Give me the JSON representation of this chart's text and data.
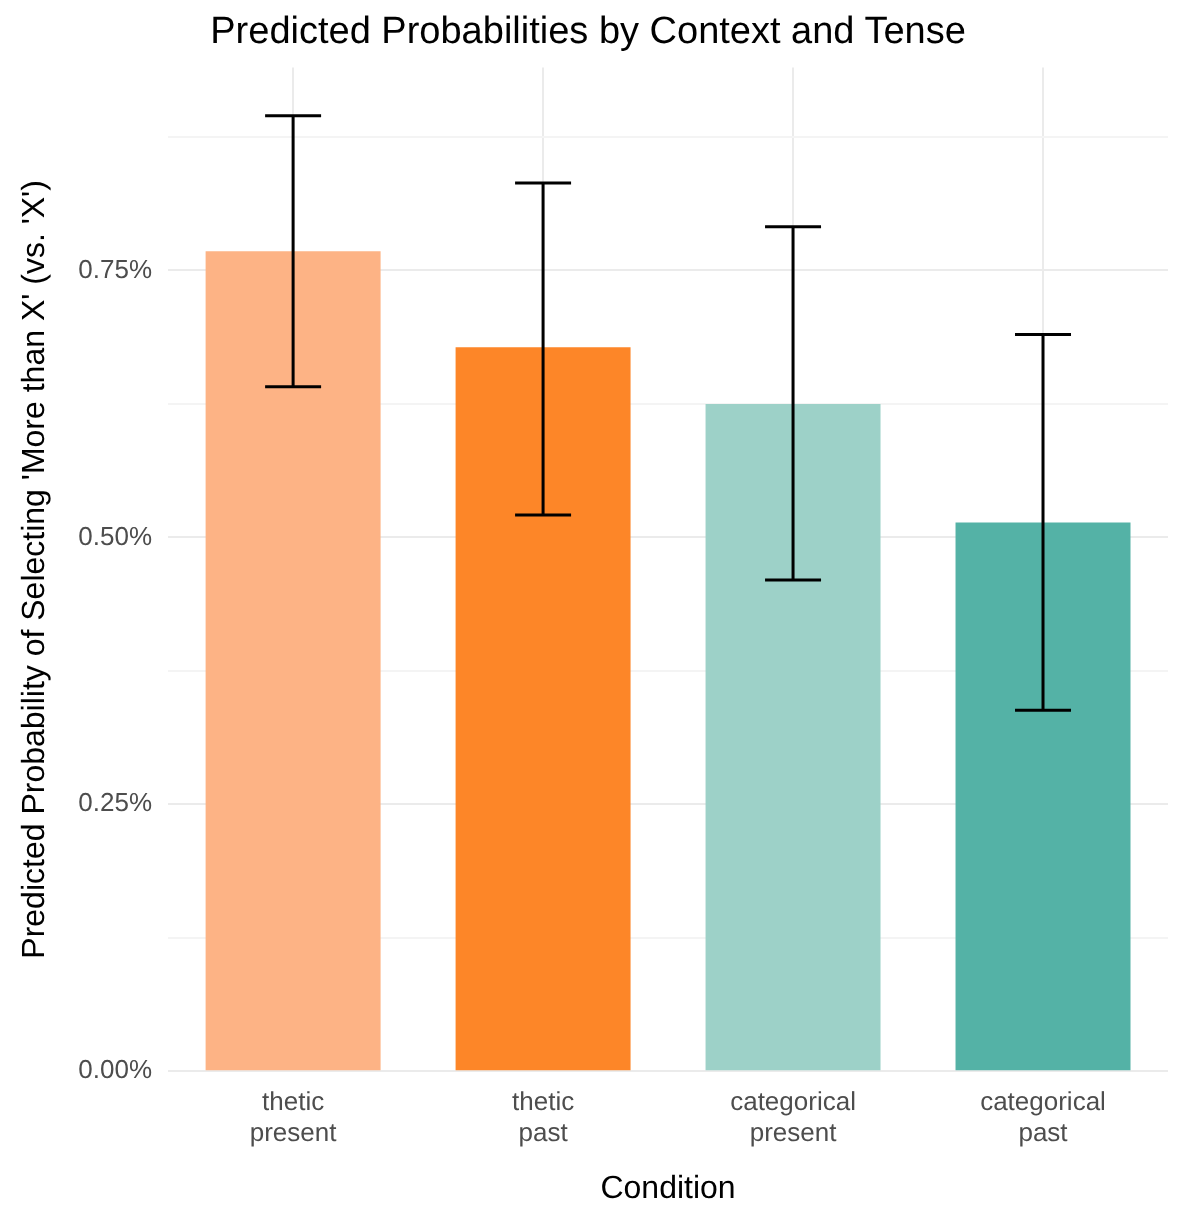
{
  "chart_data": {
    "type": "bar",
    "title": "Predicted Probabilities by Context and Tense",
    "xlabel": "Condition",
    "ylabel": "Predicted Probability of Selecting 'More than X' (vs. 'X')",
    "categories": [
      "thetic\npresent",
      "thetic\npast",
      "categorical\npresent",
      "categorical\npast"
    ],
    "values": [
      0.768,
      0.678,
      0.625,
      0.514
    ],
    "colors": [
      "#fdb385",
      "#fd8628",
      "#9dd1c8",
      "#54b2a6"
    ],
    "errors": [
      [
        0.641,
        0.895
      ],
      [
        0.521,
        0.832
      ],
      [
        0.46,
        0.791
      ],
      [
        0.338,
        0.69
      ]
    ],
    "ylim": [
      0,
      0.94
    ],
    "yticks": [
      {
        "value": 0,
        "label": "0.00%"
      },
      {
        "value": 0.125,
        "label": null
      },
      {
        "value": 0.25,
        "label": "0.25%"
      },
      {
        "value": 0.375,
        "label": null
      },
      {
        "value": 0.5,
        "label": "0.50%"
      },
      {
        "value": 0.625,
        "label": null
      },
      {
        "value": 0.75,
        "label": "0.75%"
      },
      {
        "value": 0.875,
        "label": null
      }
    ],
    "grid": true
  }
}
